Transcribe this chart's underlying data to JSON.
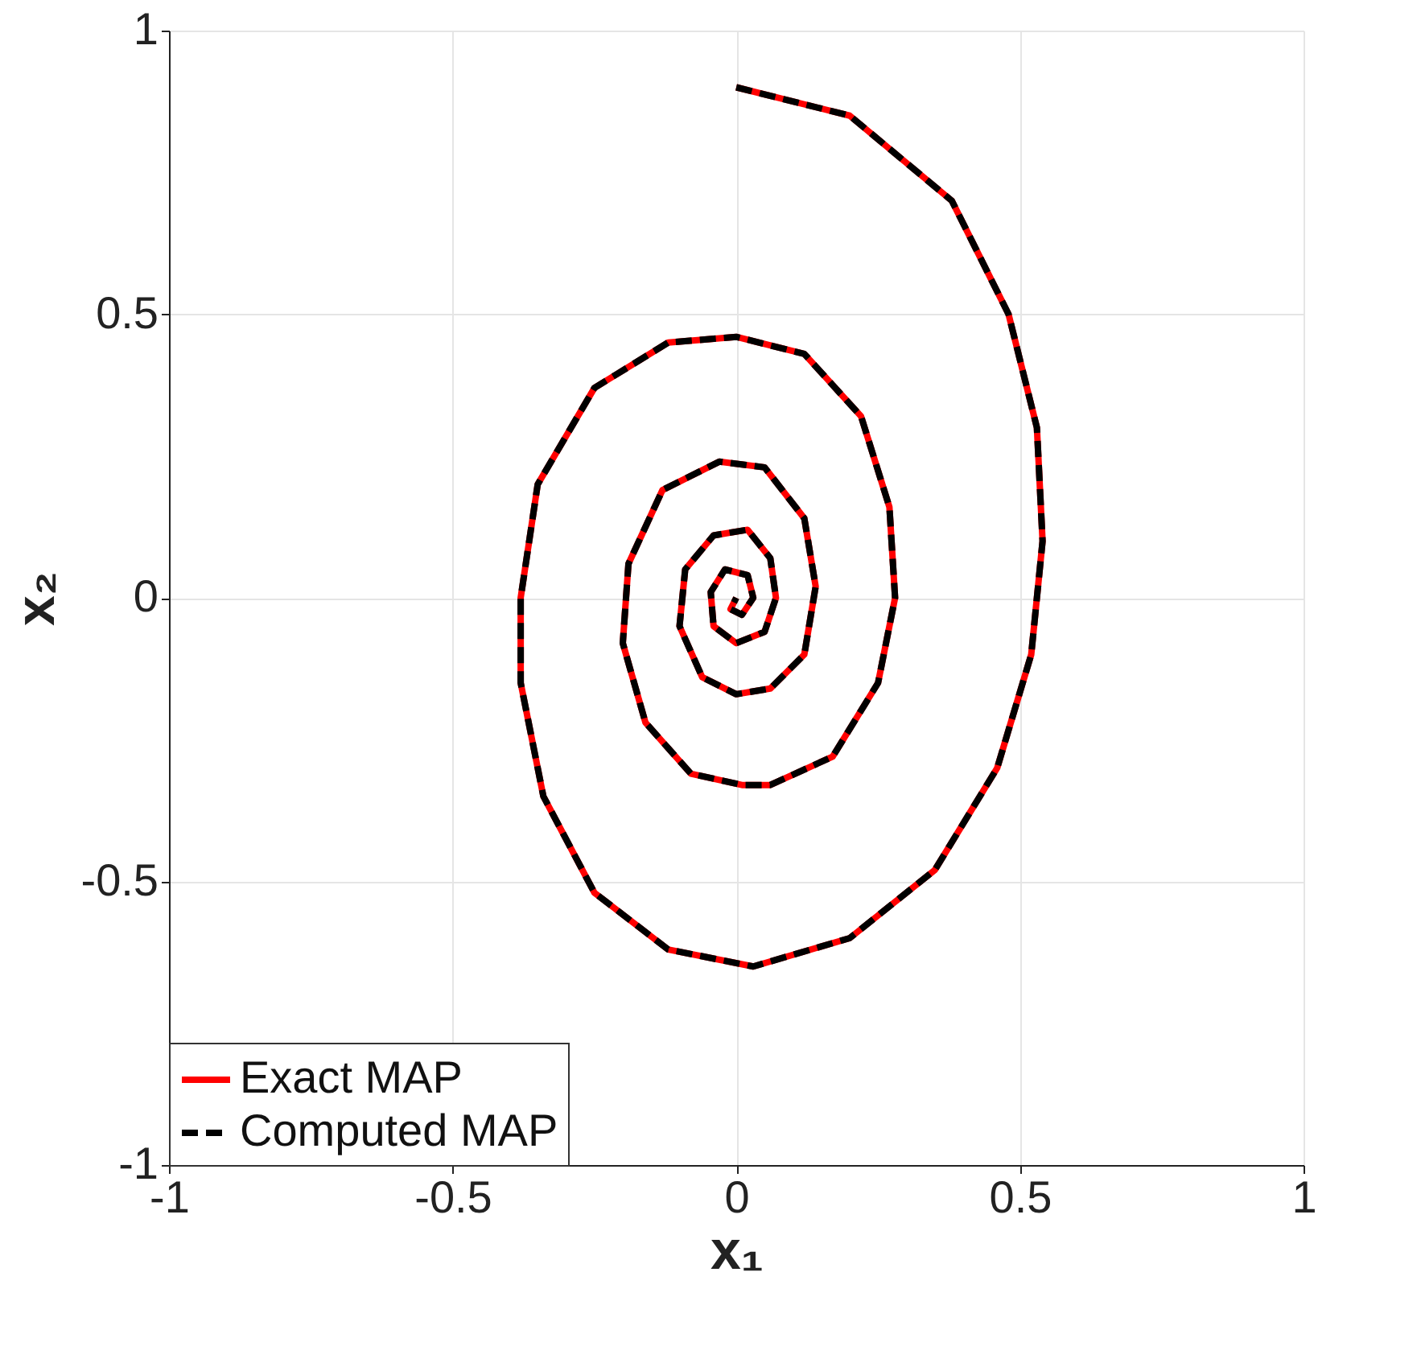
{
  "chart_data": {
    "type": "line",
    "xlabel": "x₁",
    "ylabel": "x₂",
    "xlim": [
      -1,
      1
    ],
    "ylim": [
      -1,
      1
    ],
    "xticks": [
      -1,
      -0.5,
      0,
      0.5,
      1
    ],
    "yticks": [
      -1,
      -0.5,
      0,
      0.5,
      1
    ],
    "grid": true,
    "legend": "bottom left",
    "x": [
      0,
      0.2,
      0.38,
      0.48,
      0.53,
      0.54,
      0.52,
      0.46,
      0.35,
      0.2,
      0.03,
      -0.12,
      -0.25,
      -0.34,
      -0.38,
      -0.38,
      -0.35,
      -0.25,
      -0.12,
      0,
      0.12,
      0.22,
      0.27,
      0.28,
      0.25,
      0.17,
      0.06,
      0.01,
      -0.08,
      -0.16,
      -0.2,
      -0.19,
      -0.13,
      -0.03,
      0.05,
      0.12,
      0.14,
      0.12,
      0.06,
      0,
      -0.06,
      -0.1,
      -0.09,
      -0.04,
      0.02,
      0.06,
      0.07,
      0.05,
      0,
      -0.04,
      -0.045,
      -0.02,
      0.02,
      0.03,
      0.01,
      -0.01,
      0
    ],
    "series": [
      {
        "name": "Exact MAP",
        "color": "#ff0000",
        "line_style": "solid",
        "values": [
          0.9,
          0.85,
          0.7,
          0.5,
          0.3,
          0.1,
          -0.1,
          -0.3,
          -0.48,
          -0.6,
          -0.65,
          -0.62,
          -0.52,
          -0.35,
          -0.15,
          0,
          0.2,
          0.37,
          0.45,
          0.46,
          0.43,
          0.32,
          0.16,
          0,
          -0.15,
          -0.28,
          -0.33,
          -0.33,
          -0.31,
          -0.22,
          -0.08,
          0.06,
          0.19,
          0.24,
          0.23,
          0.14,
          0.02,
          -0.1,
          -0.16,
          -0.17,
          -0.14,
          -0.05,
          0.05,
          0.11,
          0.12,
          0.07,
          0,
          -0.06,
          -0.08,
          -0.05,
          0.01,
          0.05,
          0.04,
          0,
          -0.03,
          -0.02,
          0
        ]
      },
      {
        "name": "Computed MAP",
        "color": "#000000",
        "line_style": "dashed",
        "values": [
          0.9,
          0.85,
          0.7,
          0.5,
          0.3,
          0.1,
          -0.1,
          -0.3,
          -0.48,
          -0.6,
          -0.65,
          -0.62,
          -0.52,
          -0.35,
          -0.15,
          0,
          0.2,
          0.37,
          0.45,
          0.46,
          0.43,
          0.32,
          0.16,
          0,
          -0.15,
          -0.28,
          -0.33,
          -0.33,
          -0.31,
          -0.22,
          -0.08,
          0.06,
          0.19,
          0.24,
          0.23,
          0.14,
          0.02,
          -0.1,
          -0.16,
          -0.17,
          -0.14,
          -0.05,
          0.05,
          0.11,
          0.12,
          0.07,
          0,
          -0.06,
          -0.08,
          -0.05,
          0.01,
          0.05,
          0.04,
          0,
          -0.03,
          -0.02,
          0
        ]
      }
    ]
  }
}
